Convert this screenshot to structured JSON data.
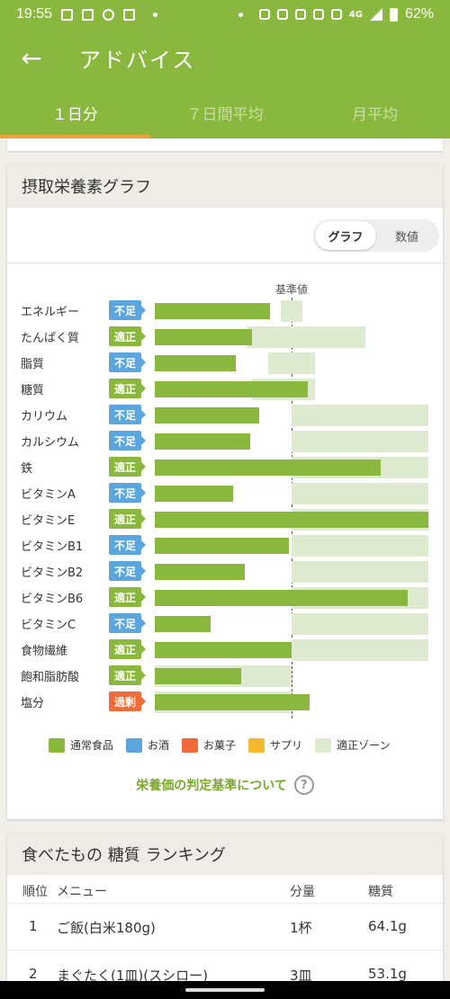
{
  "status": {
    "time": "19:55",
    "network": "4G",
    "battery": "62%"
  },
  "appbar": {
    "title": "アドバイス",
    "back_icon": "arrow-left-icon"
  },
  "tabs": [
    {
      "label": "１日分"
    },
    {
      "label": "７日間平均"
    },
    {
      "label": "月平均"
    }
  ],
  "nutrient_graph": {
    "title": "摂取栄養素グラフ",
    "toggle": {
      "graph": "グラフ",
      "values": "数値"
    },
    "reference_label": "基準値",
    "criteria_link": "栄養価の判定基準について",
    "help": "?",
    "legend": [
      {
        "label": "通常食品",
        "color": "#8ab83e"
      },
      {
        "label": "お酒",
        "color": "#5aa6dd"
      },
      {
        "label": "お菓子",
        "color": "#ef6b3a"
      },
      {
        "label": "サプリ",
        "color": "#f6b731"
      },
      {
        "label": "適正ゾーン",
        "color": "#deebd1"
      }
    ],
    "status_colors": {
      "不足": "#5aa6dd",
      "適正": "#8ab83e",
      "過剰": "#ef6b3a"
    }
  },
  "chart_data": {
    "type": "bar",
    "orientation": "horizontal",
    "title": "摂取栄養素グラフ",
    "unit": "基準値に対する割合",
    "reference": 1.0,
    "categories": [
      "エネルギー",
      "たんぱく質",
      "脂質",
      "糖質",
      "カリウム",
      "カルシウム",
      "鉄",
      "ビタミンA",
      "ビタミンE",
      "ビタミンB1",
      "ビタミンB2",
      "ビタミンB6",
      "ビタミンC",
      "食物繊維",
      "飽和脂肪酸",
      "塩分"
    ],
    "status": [
      "不足",
      "適正",
      "不足",
      "適正",
      "不足",
      "不足",
      "適正",
      "不足",
      "適正",
      "不足",
      "不足",
      "適正",
      "不足",
      "適正",
      "適正",
      "過剰"
    ],
    "series": [
      {
        "name": "通常食品",
        "values": [
          0.84,
          0.71,
          0.59,
          1.12,
          0.76,
          0.7,
          1.65,
          0.57,
          2.0,
          0.98,
          0.66,
          1.85,
          0.41,
          1.0,
          0.63,
          1.13
        ]
      }
    ],
    "appropriate_zone": [
      [
        0.92,
        1.08
      ],
      [
        0.67,
        1.54
      ],
      [
        0.83,
        1.17
      ],
      [
        0.71,
        1.17
      ],
      [
        1.0,
        2.0
      ],
      [
        1.0,
        2.0
      ],
      [
        1.0,
        2.0
      ],
      [
        1.0,
        2.0
      ],
      [
        1.0,
        2.0
      ],
      [
        1.0,
        2.0
      ],
      [
        1.0,
        2.0
      ],
      [
        1.0,
        2.0
      ],
      [
        1.0,
        2.0
      ],
      [
        1.0,
        2.0
      ],
      [
        0.0,
        1.0
      ],
      [
        0.0,
        1.0
      ]
    ]
  },
  "ranking": {
    "title": "食べたもの 糖質 ランキング",
    "headers": {
      "rank": "順位",
      "menu": "メニュー",
      "amount": "分量",
      "value": "糖質"
    },
    "rows": [
      {
        "rank": "1",
        "menu": "ご飯(白米180g)",
        "amount": "1杯",
        "value": "64.1g"
      },
      {
        "rank": "2",
        "menu": "まぐたく(1皿)(スシロー)",
        "amount": "3皿",
        "value": "53.1g"
      }
    ]
  }
}
